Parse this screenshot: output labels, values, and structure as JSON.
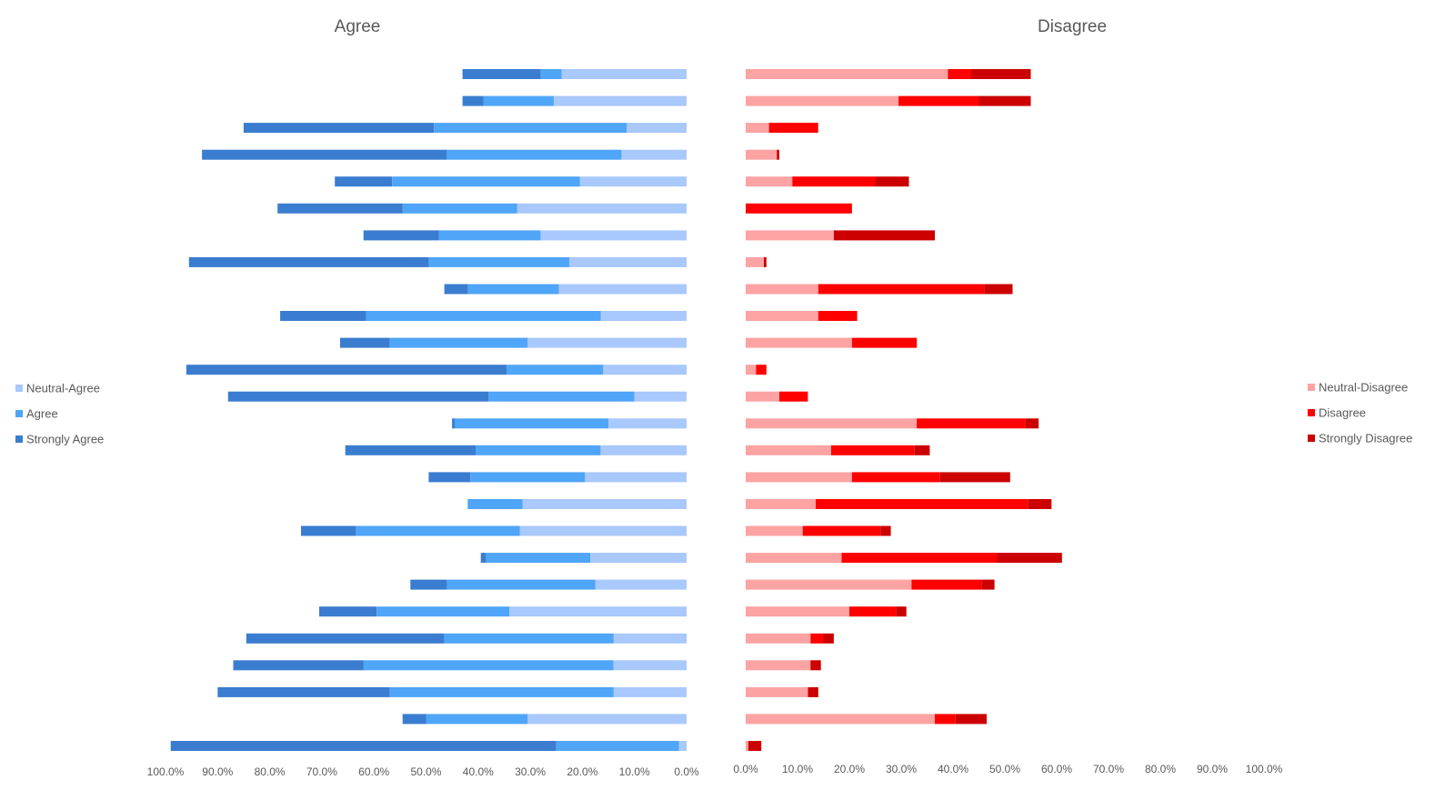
{
  "chart_data": [
    {
      "type": "bar",
      "orientation": "horizontal-stacked-reversed",
      "title": "Agree",
      "xlim": [
        0,
        100
      ],
      "xticks": [
        "100.0%",
        "90.0%",
        "80.0%",
        "70.0%",
        "60.0%",
        "50.0%",
        "40.0%",
        "30.0%",
        "20.0%",
        "10.0%",
        "0.0%"
      ],
      "legend_position": "left",
      "series": [
        {
          "name": "Neutral-Agree",
          "color": "#A9C8FB",
          "values": [
            24,
            25.5,
            11.5,
            12.5,
            20.5,
            32.5,
            28,
            22.5,
            24.5,
            16.5,
            30.5,
            16,
            10,
            15,
            16.5,
            19.5,
            31.5,
            32,
            18.5,
            17.5,
            34,
            14,
            14,
            14,
            30.5,
            1.5
          ]
        },
        {
          "name": "Agree",
          "color": "#4FA5F7",
          "values": [
            4,
            13.5,
            37,
            33.5,
            36,
            22,
            19.5,
            27,
            17.5,
            45,
            26.5,
            18.5,
            28,
            29.5,
            24,
            22,
            10.5,
            31.5,
            20,
            28.5,
            25.5,
            32.5,
            48,
            43,
            19.5,
            23.5
          ]
        },
        {
          "name": "Strongly Agree",
          "color": "#3A7DD0",
          "values": [
            15,
            4,
            36.5,
            47,
            11,
            24,
            14.5,
            46,
            4.5,
            16.5,
            9.5,
            61.5,
            50,
            0.5,
            25,
            8,
            0,
            10.5,
            1,
            7,
            11,
            38,
            25,
            33,
            4.5,
            74
          ]
        }
      ]
    },
    {
      "type": "bar",
      "orientation": "horizontal-stacked",
      "title": "Disagree",
      "xlim": [
        0,
        100
      ],
      "xticks": [
        "0.0%",
        "10.0%",
        "20.0%",
        "30.0%",
        "40.0%",
        "50.0%",
        "60.0%",
        "70.0%",
        "80.0%",
        "90.0%",
        "100.0%"
      ],
      "legend_position": "right",
      "series": [
        {
          "name": "Neutral-Disagree",
          "color": "#FDA3A3",
          "values": [
            39,
            29.5,
            4.5,
            6,
            9,
            0,
            17,
            3.5,
            14,
            14,
            20.5,
            2,
            6.5,
            33,
            16.5,
            20.5,
            13.5,
            11,
            18.5,
            32,
            20,
            12.5,
            12.5,
            12,
            36.5,
            0.5
          ]
        },
        {
          "name": "Disagree",
          "color": "#FF0000",
          "values": [
            4.5,
            15.5,
            9.5,
            0,
            16,
            20.5,
            0,
            0,
            32,
            7.5,
            12.5,
            2,
            5.5,
            21,
            16,
            17,
            41,
            15,
            30,
            13.5,
            9,
            2.5,
            0,
            0,
            4,
            0
          ]
        },
        {
          "name": "Strongly Disagree",
          "color": "#CC0000",
          "values": [
            11.5,
            10,
            0,
            0.5,
            6.5,
            0,
            19.5,
            0.5,
            5.5,
            0,
            0,
            0,
            0,
            2.5,
            3,
            13.5,
            4.5,
            2,
            12.5,
            2.5,
            2,
            2,
            2,
            2,
            6,
            2.5
          ]
        }
      ]
    }
  ]
}
